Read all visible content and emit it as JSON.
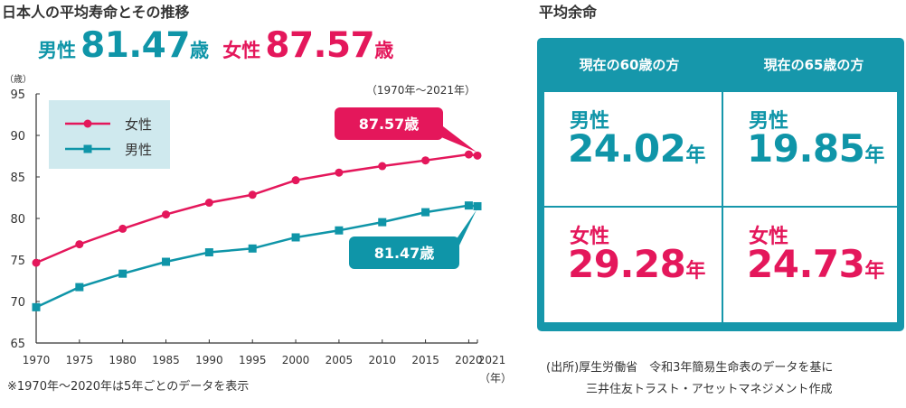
{
  "chart_title": "日本人の平均寿命とその推移",
  "headline": {
    "male_label": "男性",
    "male_value": "81.47",
    "male_unit": "歳",
    "female_label": "女性",
    "female_value": "87.57",
    "female_unit": "歳"
  },
  "chart_data": {
    "type": "line",
    "title": "日本人の平均寿命とその推移",
    "subtitle": "（1970年～2021年）",
    "ylabel": "（歳）",
    "xlabel": "（年）",
    "ylim": [
      65,
      95
    ],
    "yticks": [
      65,
      70,
      75,
      80,
      85,
      90,
      95
    ],
    "xticks": [
      1970,
      1975,
      1980,
      1985,
      1990,
      1995,
      2000,
      2005,
      2010,
      2015,
      2020,
      2021
    ],
    "grid": false,
    "legend_position": "top-left",
    "x": [
      1970,
      1975,
      1980,
      1985,
      1990,
      1995,
      2000,
      2005,
      2010,
      2015,
      2020,
      2021
    ],
    "series": [
      {
        "name": "女性",
        "color": "#e4175b",
        "marker": "circle",
        "values": [
          74.66,
          76.89,
          78.76,
          80.48,
          81.9,
          82.85,
          84.6,
          85.52,
          86.3,
          86.99,
          87.71,
          87.57
        ]
      },
      {
        "name": "男性",
        "color": "#0f95a8",
        "marker": "square",
        "values": [
          69.31,
          71.73,
          73.35,
          74.78,
          75.92,
          76.38,
          77.72,
          78.56,
          79.55,
          80.75,
          81.56,
          81.47
        ]
      }
    ],
    "annotations": [
      {
        "text": "87.57歳",
        "color": "#e4175b"
      },
      {
        "text": "81.47歳",
        "color": "#0f95a8"
      }
    ],
    "footnote": "※1970年～2020年は5年ごとのデータを表示"
  },
  "table": {
    "title": "平均余命",
    "columns": [
      "現在の60歳の方",
      "現在の65歳の方"
    ],
    "male_label": "男性",
    "female_label": "女性",
    "unit": "年",
    "male_values": [
      "24.02",
      "19.85"
    ],
    "female_values": [
      "29.28",
      "24.73"
    ],
    "frame_color": "#1697ab"
  },
  "source": {
    "line1": "(出所)厚生労働省　令和3年簡易生命表のデータを基に",
    "line2": "三井住友トラスト・アセットマネジメント作成"
  }
}
